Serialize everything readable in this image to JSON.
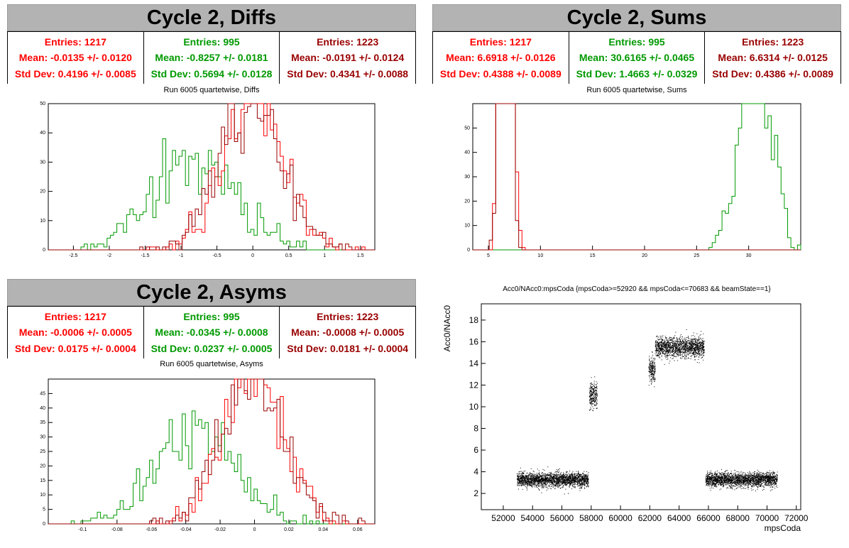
{
  "colors": {
    "red": "#ff0000",
    "green": "#009900",
    "darkred": "#990000"
  },
  "panels": {
    "diffs": {
      "title": "Cycle 2, Diffs",
      "subtitle": "Run 6005 quartetwise, Diffs",
      "stats": [
        {
          "entries": "Entries: 1217",
          "mean": "Mean: -0.0135 +/- 0.0120",
          "std": "Std Dev: 0.4196 +/- 0.0085"
        },
        {
          "entries": "Entries: 995",
          "mean": "Mean: -0.8257 +/- 0.0181",
          "std": "Std Dev: 0.5694 +/- 0.0128"
        },
        {
          "entries": "Entries: 1223",
          "mean": "Mean: -0.0191 +/- 0.0124",
          "std": "Std Dev: 0.4341 +/- 0.0088"
        }
      ]
    },
    "sums": {
      "title": "Cycle 2, Sums",
      "subtitle": "Run 6005 quartetwise, Sums",
      "stats": [
        {
          "entries": "Entries: 1217",
          "mean": "Mean: 6.6918 +/- 0.0126",
          "std": "Std Dev: 0.4388 +/- 0.0089"
        },
        {
          "entries": "Entries: 995",
          "mean": "Mean: 30.6165 +/- 0.0465",
          "std": "Std Dev: 1.4663 +/- 0.0329"
        },
        {
          "entries": "Entries: 1223",
          "mean": "Mean: 6.6314 +/- 0.0125",
          "std": "Std Dev: 0.4386 +/- 0.0089"
        }
      ]
    },
    "asyms": {
      "title": "Cycle 2, Asyms",
      "subtitle": "Run 6005 quartetwise, Asyms",
      "stats": [
        {
          "entries": "Entries: 1217",
          "mean": "Mean: -0.0006 +/- 0.0005",
          "std": "Std Dev: 0.0175 +/- 0.0004"
        },
        {
          "entries": "Entries: 995",
          "mean": "Mean: -0.0345 +/- 0.0008",
          "std": "Std Dev: 0.0237 +/- 0.0005"
        },
        {
          "entries": "Entries: 1223",
          "mean": "Mean: -0.0008 +/- 0.0005",
          "std": "Std Dev: 0.0181 +/- 0.0004"
        }
      ]
    },
    "scatter": {
      "subtitle": "Acc0/NAcc0:mpsCoda {mpsCoda>=52920 && mpsCoda<=70683 && beamState==1}"
    }
  },
  "chart_data": [
    {
      "id": "diffs",
      "type": "histogram",
      "xlim": [
        -2.85,
        1.7
      ],
      "ylim": [
        0,
        50
      ],
      "xticks": [
        -2.5,
        -2,
        -1.5,
        -1,
        -0.5,
        0,
        0.5,
        1,
        1.5
      ],
      "yticks": [
        0,
        10,
        20,
        30,
        40,
        50
      ],
      "series": [
        {
          "color": "green",
          "mean": -0.8257,
          "std": 0.5694,
          "entries": 995
        },
        {
          "color": "red",
          "mean": -0.0135,
          "std": 0.4196,
          "entries": 1217
        },
        {
          "color": "darkred",
          "mean": -0.0191,
          "std": 0.4341,
          "entries": 1223
        }
      ]
    },
    {
      "id": "sums",
      "type": "histogram",
      "xlim": [
        3.5,
        35
      ],
      "ylim": [
        0,
        60
      ],
      "xticks": [
        5,
        10,
        15,
        20,
        25,
        30
      ],
      "yticks": [
        0,
        10,
        20,
        30,
        40,
        50
      ],
      "series": [
        {
          "color": "green",
          "mean": 30.6165,
          "std": 1.4663,
          "entries": 995
        },
        {
          "color": "red",
          "mean": 6.6918,
          "std": 0.4388,
          "entries": 1217
        },
        {
          "color": "darkred",
          "mean": 6.6314,
          "std": 0.4386,
          "entries": 1223
        }
      ]
    },
    {
      "id": "asyms",
      "type": "histogram",
      "xlim": [
        -0.12,
        0.07
      ],
      "ylim": [
        0,
        50
      ],
      "xticks": [
        -0.1,
        -0.08,
        -0.06,
        -0.04,
        -0.02,
        0,
        0.02,
        0.04,
        0.06
      ],
      "xtick_labels": [
        "-0.1",
        "-0.08",
        "-0.06",
        "-0.04",
        "-0.02",
        "0",
        "0.02",
        "0.04",
        "0.06"
      ],
      "yticks": [
        0,
        5,
        10,
        15,
        20,
        25,
        30,
        35,
        40,
        45
      ],
      "series": [
        {
          "color": "green",
          "mean": -0.0345,
          "std": 0.0237,
          "entries": 995
        },
        {
          "color": "red",
          "mean": -0.0006,
          "std": 0.0175,
          "entries": 1217
        },
        {
          "color": "darkred",
          "mean": -0.0008,
          "std": 0.0181,
          "entries": 1223
        }
      ]
    },
    {
      "id": "scatter",
      "type": "scatter",
      "xlabel": "mpsCoda",
      "ylabel": "Acc0/NAcc0",
      "xlim": [
        50500,
        72300
      ],
      "ylim": [
        0.5,
        19.5
      ],
      "xticks": [
        52000,
        54000,
        56000,
        58000,
        60000,
        62000,
        64000,
        66000,
        68000,
        70000,
        72000
      ],
      "yticks": [
        2,
        4,
        6,
        8,
        10,
        12,
        14,
        16,
        18
      ],
      "clusters": [
        {
          "x": [
            52920,
            57800
          ],
          "y_mean": 3.3,
          "y_spread": 0.9
        },
        {
          "x": [
            57850,
            58400
          ],
          "y_mean": 11.0,
          "y_spread": 1.8
        },
        {
          "x": [
            61900,
            62350
          ],
          "y_mean": 13.5,
          "y_spread": 1.6
        },
        {
          "x": [
            62350,
            65700
          ],
          "y_mean": 15.5,
          "y_spread": 1.3
        },
        {
          "x": [
            65800,
            70683
          ],
          "y_mean": 3.3,
          "y_spread": 0.9
        }
      ]
    }
  ]
}
